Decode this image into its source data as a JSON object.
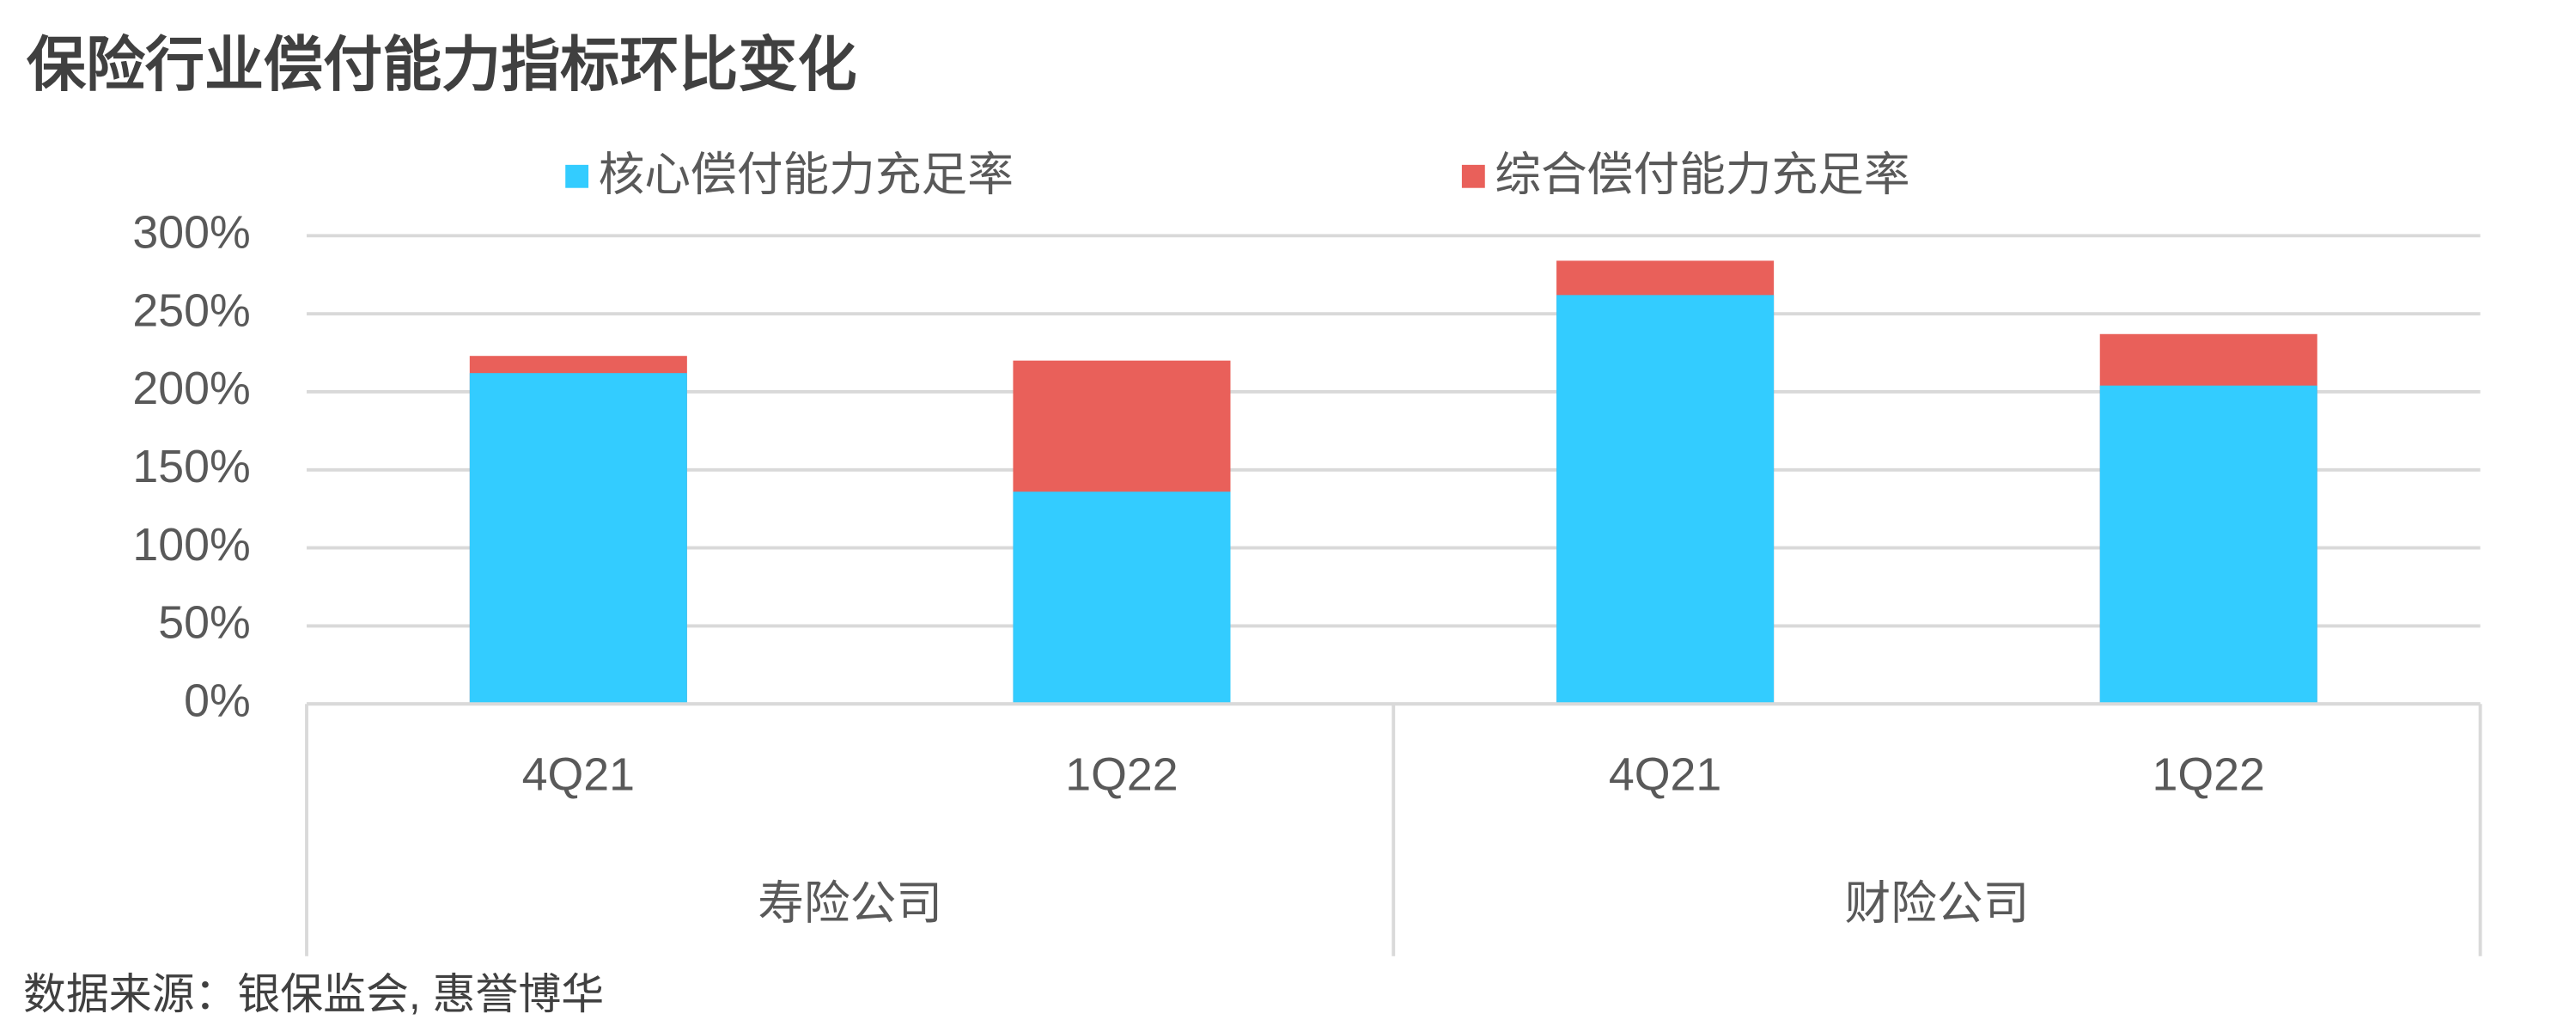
{
  "chart_data": {
    "type": "bar",
    "title": "保险行业偿付能力指标环比变化",
    "categories": [
      "4Q21",
      "1Q22",
      "4Q21",
      "1Q22"
    ],
    "groups": [
      "寿险公司",
      "财险公司"
    ],
    "series": [
      {
        "name": "核心偿付能力充足率",
        "color": "#33ccff",
        "values": [
          212,
          136,
          262,
          204
        ]
      },
      {
        "name": "综合偿付能力充足率",
        "color": "#e9605a",
        "values": [
          223,
          220,
          284,
          237
        ]
      }
    ],
    "ylim": [
      0,
      300
    ],
    "yticks": [
      {
        "value": 0,
        "label": "0%"
      },
      {
        "value": 50,
        "label": "50%"
      },
      {
        "value": 100,
        "label": "100%"
      },
      {
        "value": 150,
        "label": "150%"
      },
      {
        "value": 200,
        "label": "200%"
      },
      {
        "value": 250,
        "label": "250%"
      },
      {
        "value": 300,
        "label": "300%"
      }
    ],
    "grid": true,
    "legend": "top",
    "source": "数据来源：银保监会, 惠誉博华"
  }
}
